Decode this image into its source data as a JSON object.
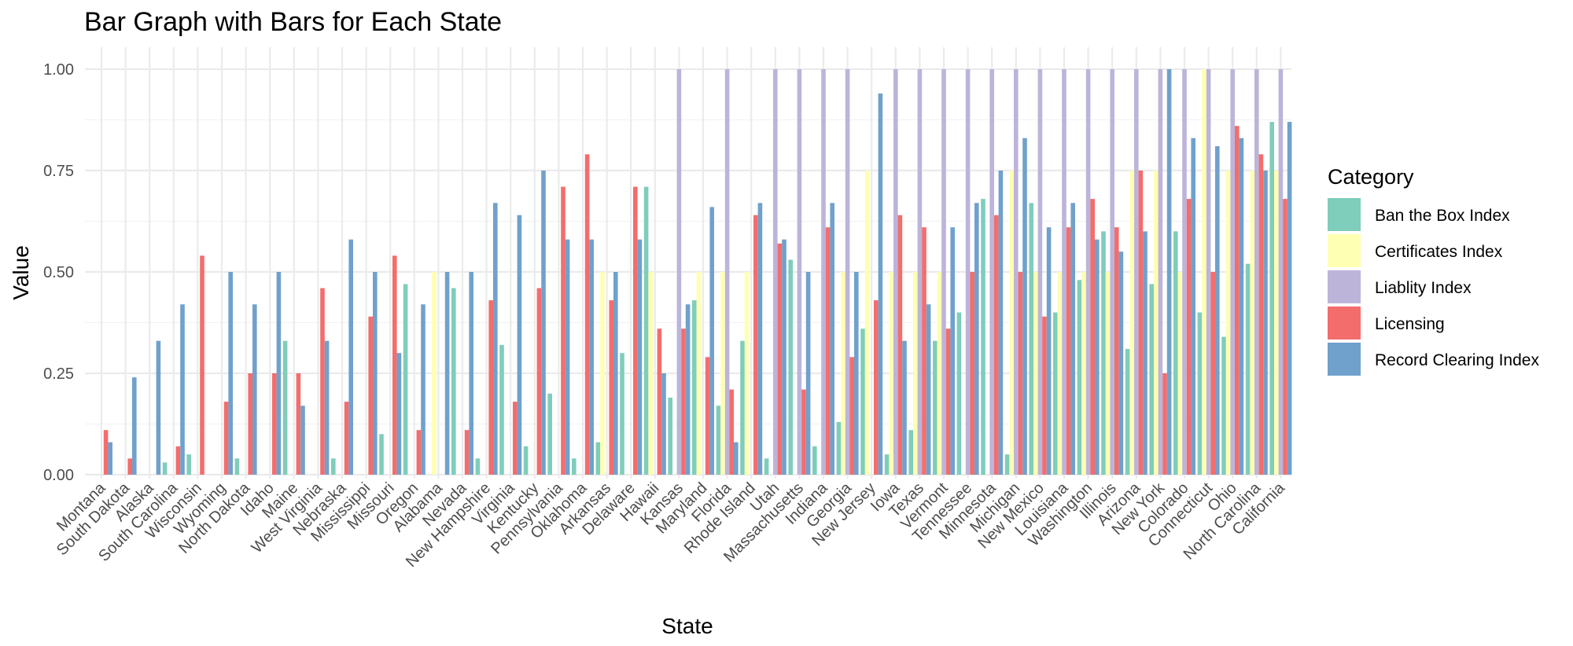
{
  "chart_data": {
    "type": "bar",
    "title": "Bar Graph with Bars for Each State",
    "xlabel": "State",
    "ylabel": "Value",
    "ylim": [
      0,
      1.05
    ],
    "yticks": [
      "0.00",
      "0.25",
      "0.50",
      "0.75",
      "1.00"
    ],
    "ytick_values": [
      0,
      0.25,
      0.5,
      0.75,
      1.0
    ],
    "grid": true,
    "legend": {
      "title": "Category",
      "position": "right"
    },
    "categories": [
      "Montana",
      "South Dakota",
      "Alaska",
      "South Carolina",
      "Wisconsin",
      "Wyoming",
      "North Dakota",
      "Idaho",
      "Maine",
      "West Virginia",
      "Nebraska",
      "Mississippi",
      "Missouri",
      "Oregon",
      "Alabama",
      "Nevada",
      "New Hampshire",
      "Virginia",
      "Kentucky",
      "Pennsylvania",
      "Oklahoma",
      "Arkansas",
      "Delaware",
      "Hawaii",
      "Kansas",
      "Maryland",
      "Florida",
      "Rhode Island",
      "Utah",
      "Massachusetts",
      "Indiana",
      "Georgia",
      "New Jersey",
      "Iowa",
      "Texas",
      "Vermont",
      "Tennessee",
      "Minnesota",
      "Michigan",
      "New Mexico",
      "Louisiana",
      "Washington",
      "Illinois",
      "Arizona",
      "New York",
      "Colorado",
      "Connecticut",
      "Ohio",
      "North Carolina",
      "California"
    ],
    "series": [
      {
        "name": "Ban the Box Index",
        "color": "#7fcdbb",
        "values": [
          0,
          0,
          0,
          0.03,
          0.05,
          0,
          0.04,
          0,
          0.33,
          0,
          0.04,
          0,
          0.1,
          0.47,
          0,
          0.46,
          0.04,
          0.32,
          0.07,
          0.2,
          0.04,
          0.08,
          0.3,
          0.71,
          0.19,
          0.43,
          0.17,
          0.33,
          0.04,
          0.53,
          0.07,
          0.13,
          0.36,
          0.05,
          0.11,
          0.33,
          0.4,
          0.68,
          0.05,
          0.67,
          0.4,
          0.48,
          0.6,
          0.31,
          0.47,
          0.6,
          0.4,
          0.34,
          0.52,
          0.87
        ]
      },
      {
        "name": "Certificates Index",
        "color": "#ffffb3",
        "values": [
          0,
          0,
          0,
          0,
          0,
          0,
          0,
          0,
          0,
          0,
          0,
          0,
          0,
          0,
          0.5,
          0,
          0,
          0,
          0,
          0,
          0,
          0.5,
          0,
          0.5,
          0,
          0.5,
          0.5,
          0.5,
          0,
          0,
          0,
          0.5,
          0.75,
          0.5,
          0.5,
          0.5,
          0,
          0,
          0.75,
          0.5,
          0.5,
          0.5,
          0.5,
          0.75,
          0.75,
          0.5,
          1.0,
          0.75,
          0.75,
          0.75
        ]
      },
      {
        "name": "Liablity Index",
        "color": "#bcb4d9",
        "values": [
          0,
          0,
          0,
          0,
          0,
          0,
          0,
          0,
          0,
          0,
          0,
          0,
          0,
          0,
          0,
          0,
          0,
          0,
          0,
          0,
          0,
          0,
          0,
          0,
          1,
          0,
          1,
          0,
          1,
          1,
          1,
          1,
          0,
          1,
          1,
          1,
          1,
          1,
          1,
          1,
          1,
          1,
          1,
          1,
          1,
          1,
          1,
          1,
          1,
          1
        ]
      },
      {
        "name": "Licensing",
        "color": "#f46d6d",
        "values": [
          0.11,
          0.04,
          0,
          0.07,
          0.54,
          0.18,
          0.25,
          0.25,
          0.25,
          0.46,
          0.18,
          0.39,
          0.54,
          0.11,
          0,
          0.11,
          0.43,
          0.18,
          0.46,
          0.71,
          0.79,
          0.43,
          0.71,
          0.36,
          0.36,
          0.29,
          0.21,
          0.64,
          0.57,
          0.21,
          0.61,
          0.29,
          0.43,
          0.64,
          0.61,
          0.36,
          0.5,
          0.64,
          0.5,
          0.39,
          0.61,
          0.68,
          0.61,
          0.75,
          0.25,
          0.68,
          0.5,
          0.86,
          0.79,
          0.68
        ]
      },
      {
        "name": "Record Clearing Index",
        "color": "#6fa1cc",
        "values": [
          0.08,
          0.24,
          0.33,
          0.42,
          0,
          0.5,
          0.42,
          0.5,
          0.17,
          0.33,
          0.58,
          0.5,
          0.3,
          0.42,
          0.5,
          0.5,
          0.67,
          0.64,
          0.75,
          0.58,
          0.58,
          0.5,
          0.58,
          0.25,
          0.42,
          0.66,
          0.08,
          0.67,
          0.58,
          0.5,
          0.67,
          0.5,
          0.94,
          0.33,
          0.42,
          0.61,
          0.67,
          0.75,
          0.83,
          0.61,
          0.67,
          0.58,
          0.55,
          0.6,
          1.0,
          0.83,
          0.81,
          0.83,
          0.75,
          0.87
        ]
      }
    ]
  }
}
